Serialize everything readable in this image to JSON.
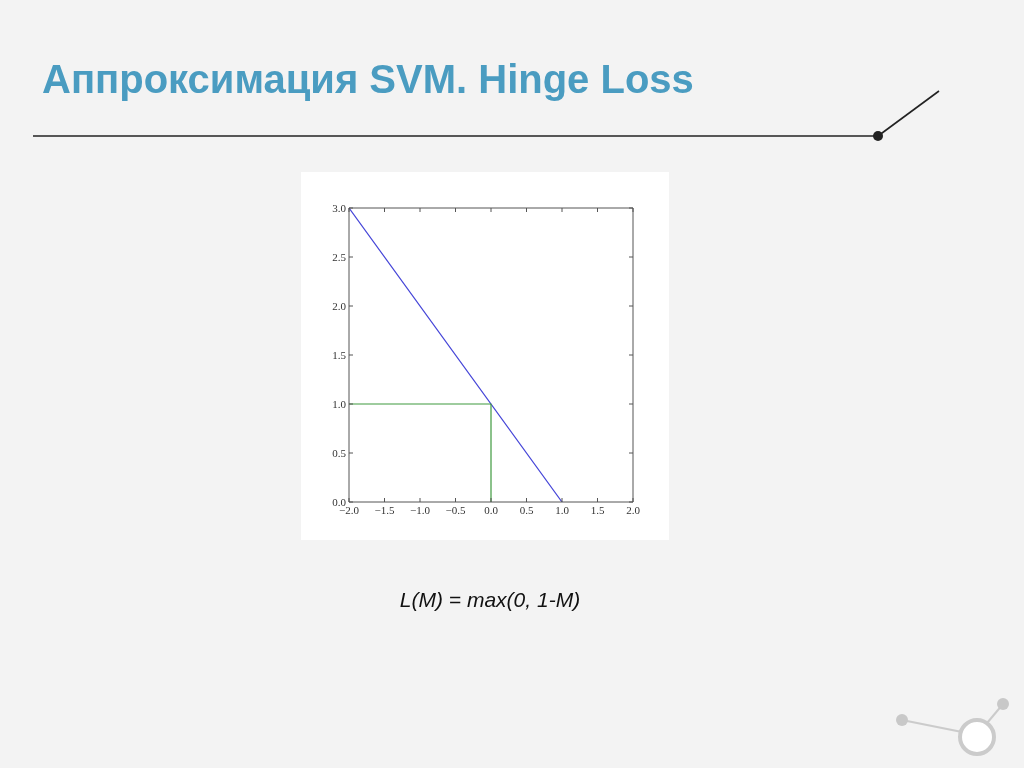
{
  "chart_data": {
    "type": "line",
    "title": "Аппроксимация SVM. Hinge Loss",
    "annotations": [
      "L(M) = max(0, 1-M)"
    ],
    "series": [
      {
        "color": "#4646d8",
        "x": [
          -2,
          1
        ],
        "values": [
          3,
          0
        ]
      },
      {
        "color": "#3f9a3f",
        "x": [
          -2,
          0,
          0
        ],
        "values": [
          1,
          1,
          0
        ]
      }
    ],
    "xlim": [
      -2,
      2
    ],
    "ylim": [
      0,
      3
    ],
    "xticks": [
      {
        "value": -2,
        "label": "−2.0"
      },
      {
        "value": -1.5,
        "label": "−1.5"
      },
      {
        "value": -1,
        "label": "−1.0"
      },
      {
        "value": -0.5,
        "label": "−0.5"
      },
      {
        "value": 0,
        "label": "0.0"
      },
      {
        "value": 0.5,
        "label": "0.5"
      },
      {
        "value": 1,
        "label": "1.0"
      },
      {
        "value": 1.5,
        "label": "1.5"
      },
      {
        "value": 2,
        "label": "2.0"
      }
    ],
    "yticks": [
      {
        "value": 0,
        "label": "0.0"
      },
      {
        "value": 0.5,
        "label": "0.5"
      },
      {
        "value": 1,
        "label": "1.0"
      },
      {
        "value": 1.5,
        "label": "1.5"
      },
      {
        "value": 2,
        "label": "2.0"
      },
      {
        "value": 2.5,
        "label": "2.5"
      },
      {
        "value": 3,
        "label": "3.0"
      }
    ],
    "marker": "none",
    "line_style": "solid"
  }
}
